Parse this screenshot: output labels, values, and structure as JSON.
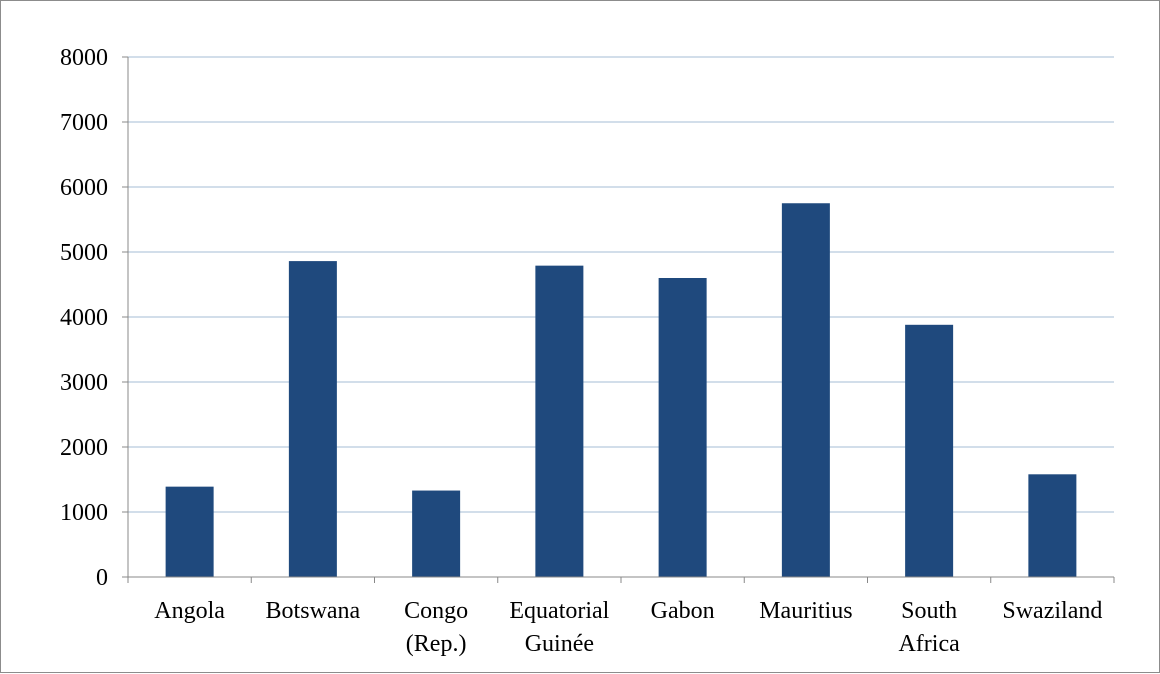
{
  "chart_data": {
    "type": "bar",
    "categories": [
      [
        "Angola"
      ],
      [
        "Botswana"
      ],
      [
        "Congo",
        "(Rep.)"
      ],
      [
        "Equatorial",
        "Guinée"
      ],
      [
        "Gabon"
      ],
      [
        "Mauritius"
      ],
      [
        "South",
        "Africa"
      ],
      [
        "Swaziland"
      ]
    ],
    "values": [
      1390,
      4860,
      1330,
      4790,
      4600,
      5750,
      3880,
      1580
    ],
    "ylim": [
      0,
      8000
    ],
    "yticks": [
      0,
      1000,
      2000,
      3000,
      4000,
      5000,
      6000,
      7000,
      8000
    ],
    "grid": true,
    "legend": "none",
    "colors": {
      "bar": "#1f497d",
      "grid": "#a6bcd6",
      "axis": "#888888"
    }
  }
}
